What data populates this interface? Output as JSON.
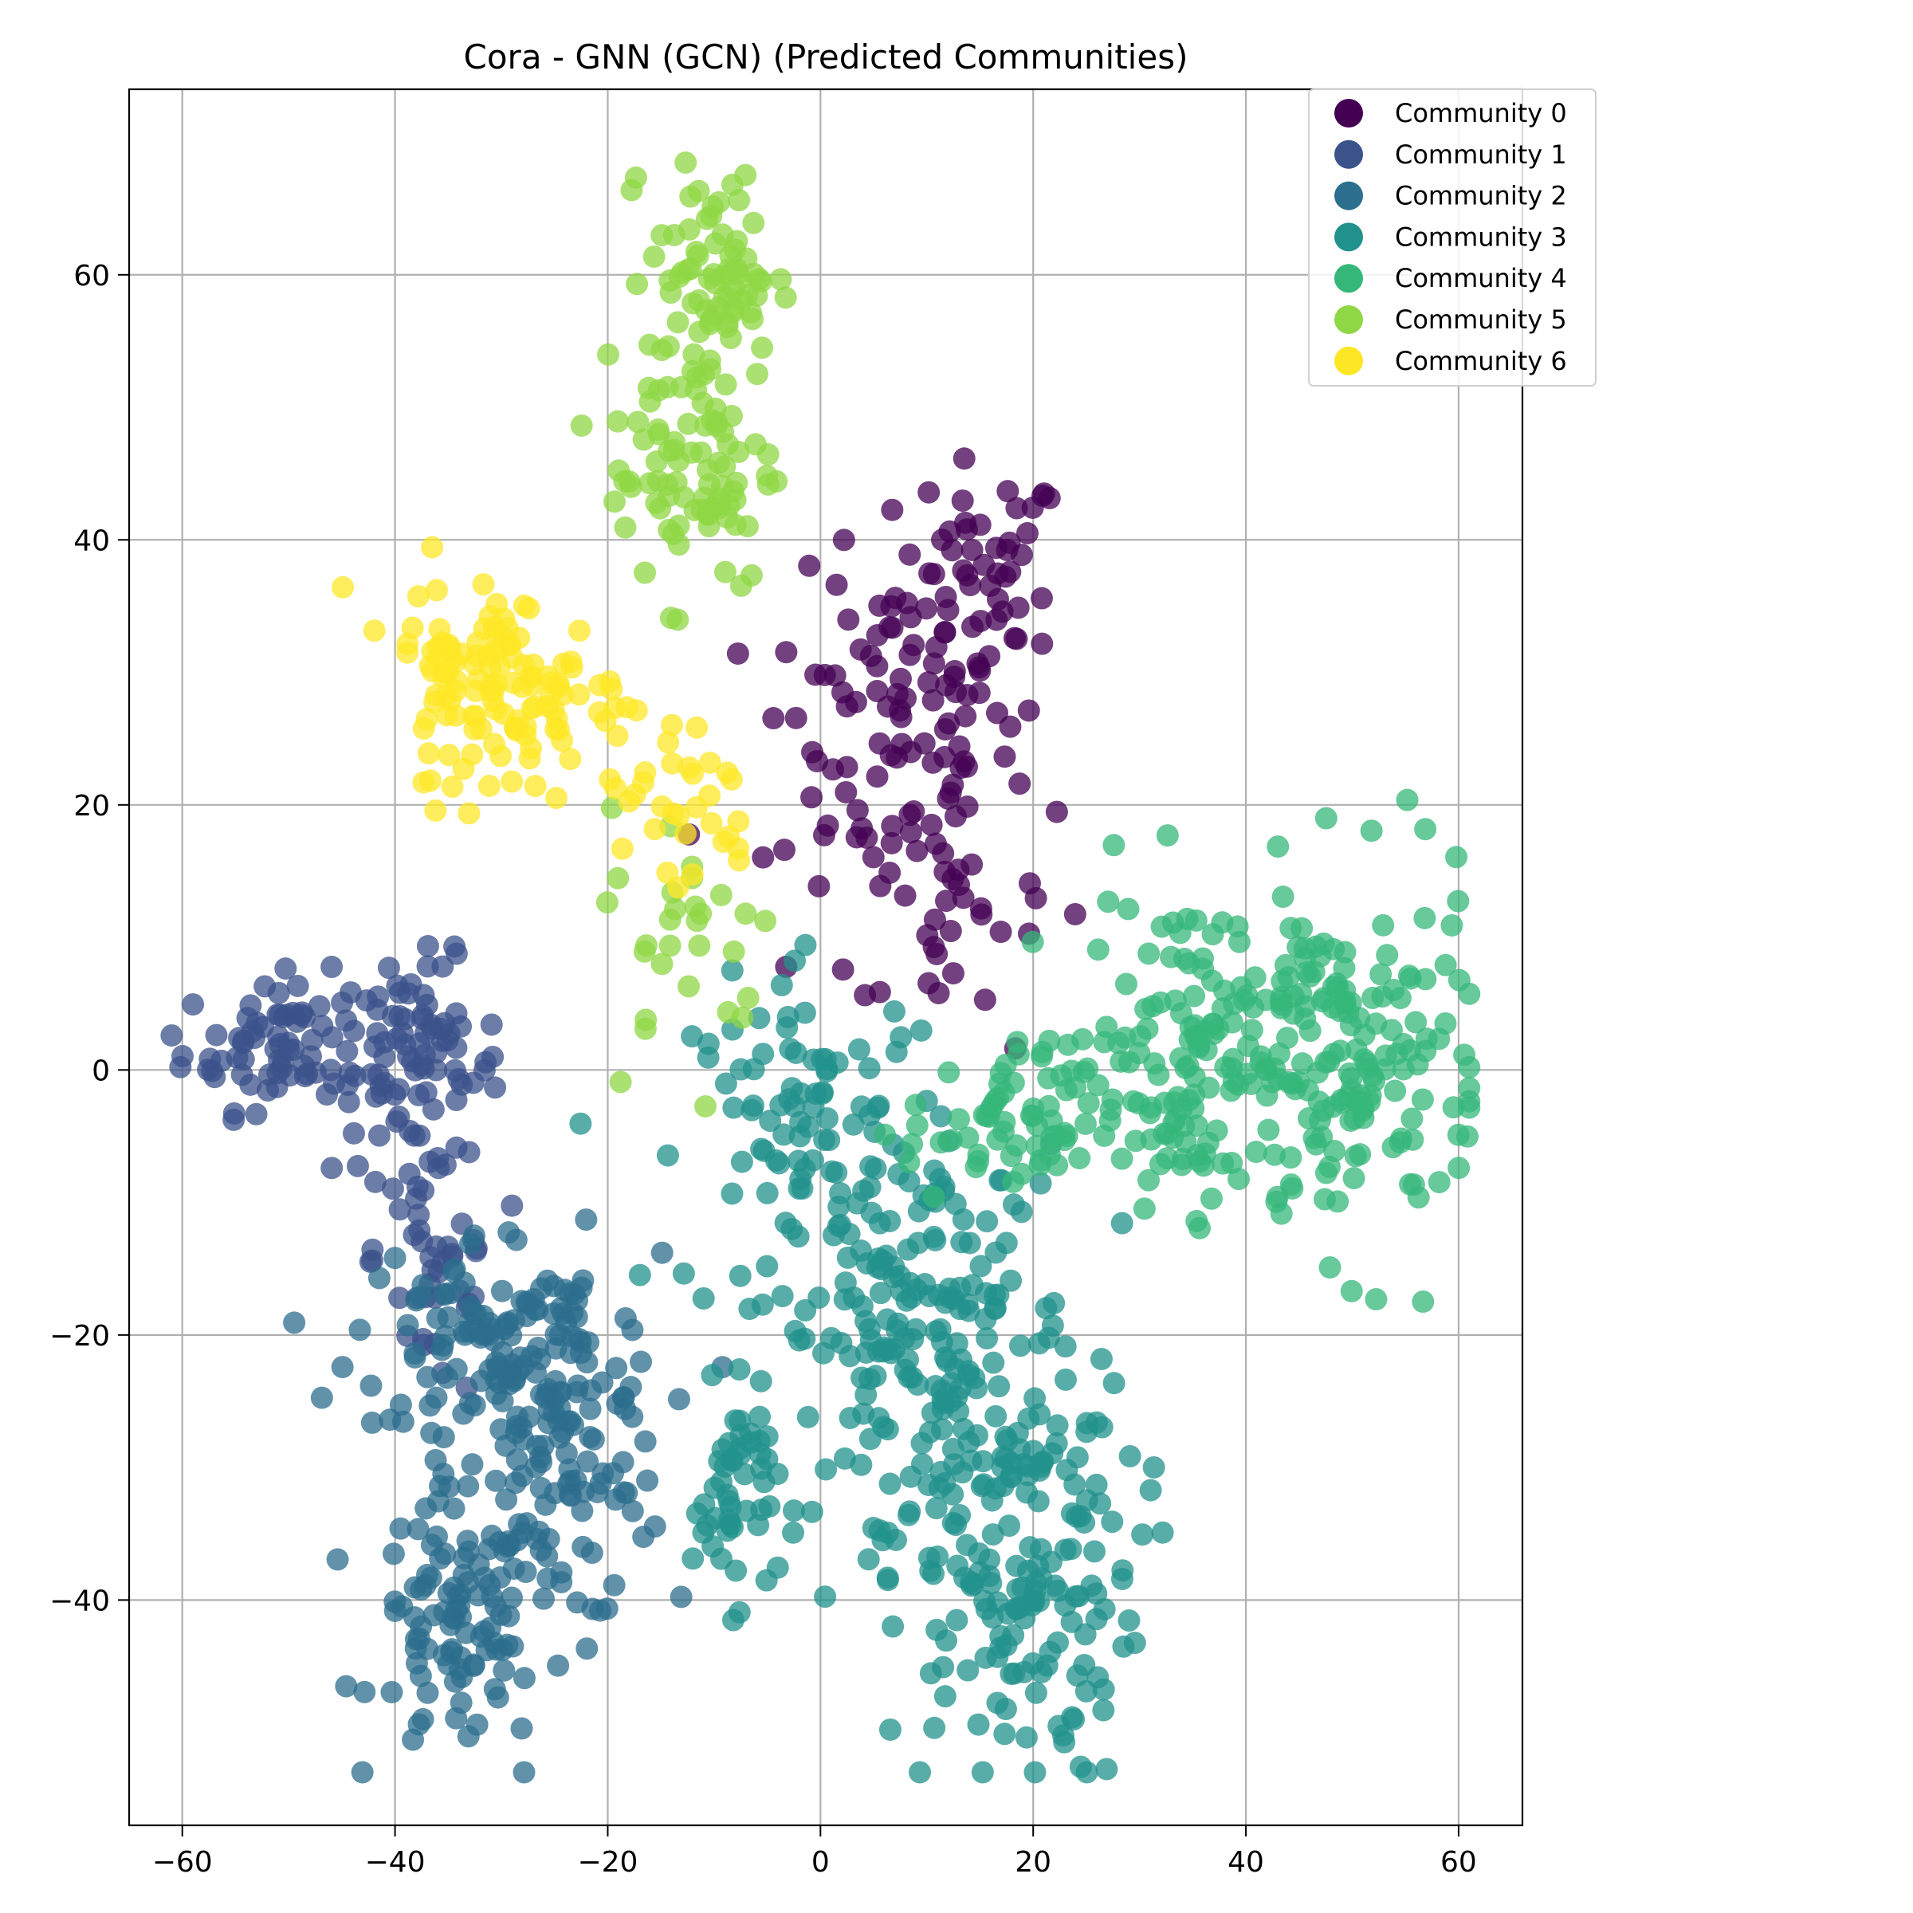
{
  "chart_data": {
    "type": "scatter",
    "title": "Cora - GNN (GCN) (Predicted Communities)",
    "xlabel": "",
    "ylabel": "",
    "xlim": [
      -65,
      66
    ],
    "ylim": [
      -57,
      74
    ],
    "xticks": [
      -60,
      -40,
      -20,
      0,
      20,
      40,
      60
    ],
    "yticks": [
      -40,
      -20,
      0,
      20,
      40,
      60
    ],
    "xtick_labels": [
      "−60",
      "−40",
      "−20",
      "0",
      "20",
      "40",
      "60"
    ],
    "ytick_labels": [
      "−40",
      "−20",
      "0",
      "20",
      "40",
      "60"
    ],
    "grid": true,
    "legend_position": "top-right",
    "point_alpha": 0.75,
    "series": [
      {
        "name": "Community 0",
        "color": "#440154",
        "count": 180,
        "clusters": [
          {
            "cx": 15,
            "cy": 36,
            "sx": 4,
            "sy": 5,
            "w": 0.35
          },
          {
            "cx": 6,
            "cy": 25,
            "sx": 6,
            "sy": 6,
            "w": 0.45
          },
          {
            "cx": 12,
            "cy": 12,
            "sx": 7,
            "sy": 5,
            "w": 0.2
          }
        ]
      },
      {
        "name": "Community 1",
        "color": "#3b528b",
        "count": 200,
        "clusters": [
          {
            "cx": -50,
            "cy": 2,
            "sx": 5,
            "sy": 2.5,
            "w": 0.4
          },
          {
            "cx": -38,
            "cy": 0,
            "sx": 4,
            "sy": 4,
            "w": 0.4
          },
          {
            "cx": -36,
            "cy": -14,
            "sx": 3,
            "sy": 6,
            "w": 0.2
          }
        ]
      },
      {
        "name": "Community 2",
        "color": "#2c6e8e",
        "count": 330,
        "clusters": [
          {
            "cx": -34,
            "cy": -42,
            "sx": 4,
            "sy": 5,
            "w": 0.3
          },
          {
            "cx": -25,
            "cy": -28,
            "sx": 5,
            "sy": 7,
            "w": 0.45
          },
          {
            "cx": -32,
            "cy": -20,
            "sx": 6,
            "sy": 4,
            "w": 0.25
          }
        ]
      },
      {
        "name": "Community 3",
        "color": "#21918c",
        "count": 500,
        "clusters": [
          {
            "cx": 18,
            "cy": -38,
            "sx": 6,
            "sy": 8,
            "w": 0.35
          },
          {
            "cx": 10,
            "cy": -20,
            "sx": 7,
            "sy": 7,
            "w": 0.35
          },
          {
            "cx": 0,
            "cy": -5,
            "sx": 6,
            "sy": 6,
            "w": 0.2
          },
          {
            "cx": -8,
            "cy": -32,
            "sx": 2,
            "sy": 4,
            "w": 0.1
          }
        ]
      },
      {
        "name": "Community 4",
        "color": "#35b779",
        "count": 360,
        "clusters": [
          {
            "cx": 50,
            "cy": 0,
            "sx": 6,
            "sy": 7,
            "w": 0.45
          },
          {
            "cx": 35,
            "cy": 2,
            "sx": 5,
            "sy": 6,
            "w": 0.35
          },
          {
            "cx": 18,
            "cy": -4,
            "sx": 5,
            "sy": 3,
            "w": 0.2
          }
        ]
      },
      {
        "name": "Community 5",
        "color": "#8fd744",
        "count": 190,
        "clusters": [
          {
            "cx": -10,
            "cy": 60,
            "sx": 3,
            "sy": 4,
            "w": 0.4
          },
          {
            "cx": -12,
            "cy": 46,
            "sx": 4,
            "sy": 5,
            "w": 0.45
          },
          {
            "cx": -12,
            "cy": 10,
            "sx": 4,
            "sy": 5,
            "w": 0.15
          }
        ]
      },
      {
        "name": "Community 6",
        "color": "#fde725",
        "count": 160,
        "clusters": [
          {
            "cx": -28,
            "cy": 28,
            "sx": 5,
            "sy": 4,
            "w": 0.6
          },
          {
            "cx": -35,
            "cy": 32,
            "sx": 3,
            "sy": 3,
            "w": 0.2
          },
          {
            "cx": -14,
            "cy": 20,
            "sx": 4,
            "sy": 4,
            "w": 0.2
          }
        ]
      }
    ]
  }
}
